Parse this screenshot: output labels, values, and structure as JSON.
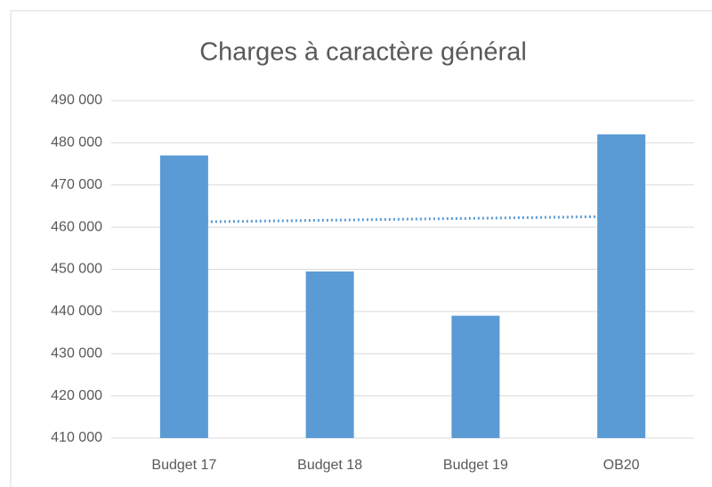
{
  "chart_data": {
    "type": "bar",
    "title": "Charges à caractère général",
    "categories": [
      "Budget 17",
      "Budget 18",
      "Budget 19",
      "OB20"
    ],
    "values": [
      477000,
      449500,
      439000,
      482000
    ],
    "color": "#5b9bd5",
    "ylim": [
      410000,
      490000
    ],
    "yticks": [
      {
        "value": 410000,
        "label": "410 000"
      },
      {
        "value": 420000,
        "label": "420 000"
      },
      {
        "value": 430000,
        "label": "430 000"
      },
      {
        "value": 440000,
        "label": "440 000"
      },
      {
        "value": 450000,
        "label": "450 000"
      },
      {
        "value": 460000,
        "label": "460 000"
      },
      {
        "value": 470000,
        "label": "470 000"
      },
      {
        "value": 480000,
        "label": "480 000"
      },
      {
        "value": 490000,
        "label": "490 000"
      }
    ],
    "grid": true,
    "trendline": "linear"
  }
}
